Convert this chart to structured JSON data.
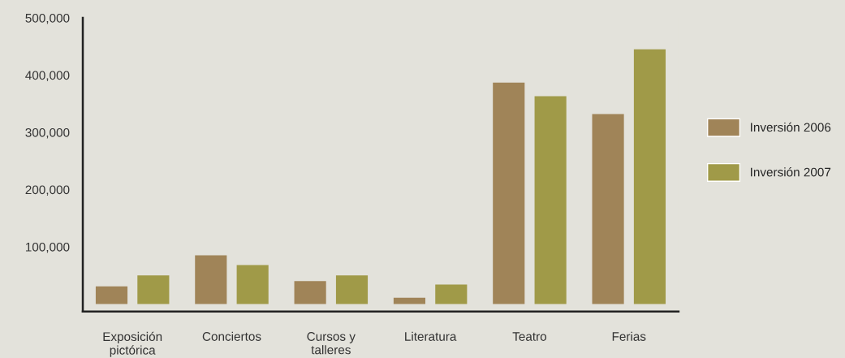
{
  "chart_data": {
    "type": "bar",
    "categories": [
      "Exposición\npictórica",
      "Conciertos",
      "Cursos y\ntalleres",
      "Literatura",
      "Teatro",
      "Ferias"
    ],
    "series": [
      {
        "name": "Inversión 2006",
        "color": "#a08458",
        "values": [
          31000,
          85000,
          40000,
          11000,
          387000,
          332000
        ]
      },
      {
        "name": "Inversión 2007",
        "color": "#a09a48",
        "values": [
          50000,
          68000,
          50000,
          34000,
          363000,
          445000
        ]
      }
    ],
    "ylim": [
      -13000,
      500000
    ],
    "yticks": [
      {
        "value": 100000,
        "label": "100,000"
      },
      {
        "value": 200000,
        "label": "200,000"
      },
      {
        "value": 300000,
        "label": "300,000"
      },
      {
        "value": 400000,
        "label": "400,000"
      },
      {
        "value": 500000,
        "label": "500,000"
      }
    ],
    "grid": false,
    "legend": "right"
  }
}
